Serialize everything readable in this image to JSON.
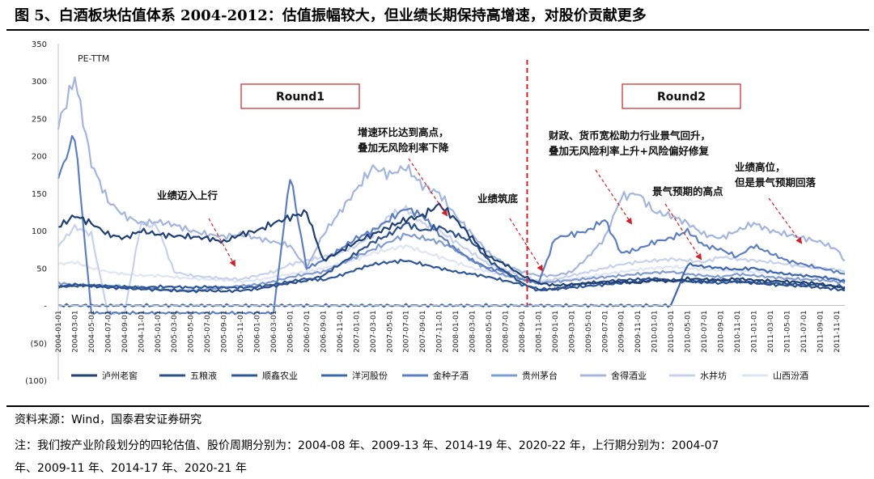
{
  "figure": {
    "title": "图 5、白酒板块估值体系 2004-2012：估值振幅较大，但业绩长期保持高增速，对股价贡献更多",
    "source": "资料来源：Wind，国泰君安证券研究",
    "note_line1": "注：我们按产业阶段划分的四轮估值、股价周期分别为：2004-08 年、2009-13 年、2014-19 年、2020-22 年，上行期分别为：2004-07",
    "note_line2": "年、2009-11 年、2014-17 年、2020-21 年"
  },
  "chart_data": {
    "type": "line",
    "title": "",
    "ylabel": "PE-TTM",
    "xlabel": "",
    "ylim": [
      -100,
      350
    ],
    "yticks": [
      -100,
      -50,
      0,
      50,
      100,
      150,
      200,
      250,
      300,
      350
    ],
    "ytick_labels": [
      "(100)",
      "(50)",
      "-",
      "50",
      "100",
      "150",
      "200",
      "250",
      "300",
      "350"
    ],
    "x_start": "2004-01",
    "x_end": "2011-12",
    "xticks": [
      "2004-01-01",
      "2004-03-01",
      "2004-05-01",
      "2004-07-01",
      "2004-09-01",
      "2004-11-01",
      "2005-01-01",
      "2005-03-01",
      "2005-05-01",
      "2005-07-01",
      "2005-09-01",
      "2005-11-01",
      "2006-01-01",
      "2006-03-01",
      "2006-05-01",
      "2006-07-01",
      "2006-09-01",
      "2006-11-01",
      "2007-01-01",
      "2007-03-01",
      "2007-05-01",
      "2007-07-01",
      "2007-09-01",
      "2007-11-01",
      "2008-01-01",
      "2008-03-01",
      "2008-05-01",
      "2008-07-01",
      "2008-09-01",
      "2008-11-01",
      "2009-01-01",
      "2009-03-01",
      "2009-05-01",
      "2009-07-01",
      "2009-09-01",
      "2009-11-01",
      "2010-01-01",
      "2010-03-01",
      "2010-05-01",
      "2010-07-01",
      "2010-09-01",
      "2010-11-01",
      "2011-01-01",
      "2011-03-01",
      "2011-05-01",
      "2011-07-01",
      "2011-09-01",
      "2011-11-01"
    ],
    "grid": false,
    "legend_position": "bottom",
    "series": [
      {
        "name": "泸州老窖",
        "color": "#1f3e73",
        "x": [
          "2004-01",
          "2004-03",
          "2004-05",
          "2004-07",
          "2004-09",
          "2004-11",
          "2005-01",
          "2005-03",
          "2005-05",
          "2005-07",
          "2005-09",
          "2005-11",
          "2006-01",
          "2006-03",
          "2006-05",
          "2006-07",
          "2006-09",
          "2006-11",
          "2007-01",
          "2007-03",
          "2007-05",
          "2007-07",
          "2007-09",
          "2007-11",
          "2008-01",
          "2008-03",
          "2008-05",
          "2008-07",
          "2008-09",
          "2008-11",
          "2009-01",
          "2009-03",
          "2009-05",
          "2009-07",
          "2009-09",
          "2009-11",
          "2010-01",
          "2010-03",
          "2010-05",
          "2010-07",
          "2010-09",
          "2010-11",
          "2011-01",
          "2011-03",
          "2011-05",
          "2011-07",
          "2011-09",
          "2011-11",
          "2011-12"
        ],
        "y": [
          105,
          120,
          110,
          95,
          90,
          100,
          95,
          93,
          92,
          90,
          85,
          95,
          100,
          110,
          118,
          125,
          60,
          72,
          85,
          95,
          105,
          115,
          120,
          135,
          115,
          90,
          65,
          55,
          40,
          30,
          27,
          28,
          30,
          30,
          32,
          30,
          34,
          32,
          36,
          35,
          34,
          36,
          34,
          33,
          32,
          31,
          29,
          25,
          23
        ]
      },
      {
        "name": "五粮液",
        "color": "#2b4f8a",
        "x": [
          "2004-01",
          "2004-03",
          "2004-05",
          "2004-07",
          "2004-09",
          "2004-11",
          "2005-01",
          "2005-03",
          "2005-05",
          "2005-07",
          "2005-09",
          "2005-11",
          "2006-01",
          "2006-03",
          "2006-05",
          "2006-07",
          "2006-09",
          "2006-11",
          "2007-01",
          "2007-03",
          "2007-05",
          "2007-07",
          "2007-09",
          "2007-11",
          "2008-01",
          "2008-03",
          "2008-05",
          "2008-07",
          "2008-09",
          "2008-11",
          "2009-01",
          "2009-03",
          "2009-05",
          "2009-07",
          "2009-09",
          "2009-11",
          "2010-01",
          "2010-03",
          "2010-05",
          "2010-07",
          "2010-09",
          "2010-11",
          "2011-01",
          "2011-03",
          "2011-05",
          "2011-07",
          "2011-09",
          "2011-11",
          "2011-12"
        ],
        "y": [
          25,
          28,
          26,
          24,
          23,
          22,
          21,
          20,
          19,
          20,
          19,
          20,
          22,
          26,
          30,
          33,
          40,
          55,
          70,
          85,
          95,
          110,
          100,
          105,
          95,
          85,
          60,
          45,
          30,
          20,
          22,
          27,
          30,
          32,
          34,
          35,
          36,
          34,
          33,
          32,
          34,
          32,
          30,
          28,
          27,
          26,
          24,
          22,
          20
        ]
      },
      {
        "name": "顺鑫农业",
        "color": "#2e5597",
        "x": [
          "2004-01",
          "2004-03",
          "2004-05",
          "2004-07",
          "2004-09",
          "2004-11",
          "2005-01",
          "2005-03",
          "2005-05",
          "2005-07",
          "2005-09",
          "2005-11",
          "2006-01",
          "2006-03",
          "2006-05",
          "2006-07",
          "2006-09",
          "2006-11",
          "2007-01",
          "2007-03",
          "2007-05",
          "2007-07",
          "2007-09",
          "2007-11",
          "2008-01",
          "2008-03",
          "2008-05",
          "2008-07",
          "2008-09",
          "2008-11",
          "2009-01",
          "2009-03",
          "2009-05",
          "2009-07",
          "2009-09",
          "2009-11",
          "2010-01",
          "2010-03",
          "2010-05",
          "2010-07",
          "2010-09",
          "2010-11",
          "2011-01",
          "2011-03",
          "2011-05",
          "2011-07",
          "2011-09",
          "2011-11",
          "2011-12"
        ],
        "y": [
          25,
          26,
          27,
          26,
          25,
          24,
          25,
          25,
          24,
          25,
          24,
          24,
          25,
          28,
          32,
          36,
          34,
          40,
          48,
          55,
          58,
          60,
          55,
          50,
          45,
          42,
          38,
          33,
          28,
          22,
          22,
          24,
          26,
          28,
          30,
          32,
          34,
          33,
          32,
          31,
          30,
          32,
          31,
          30,
          29,
          28,
          27,
          26,
          25
        ]
      },
      {
        "name": "洋河股份",
        "color": "#3d67ad",
        "x": [
          "2004-01",
          "2004-03",
          "2004-05",
          "2004-07",
          "2004-09",
          "2004-11",
          "2005-01",
          "2005-03",
          "2005-05",
          "2005-07",
          "2005-09",
          "2005-11",
          "2006-01",
          "2006-03",
          "2006-05",
          "2006-07",
          "2006-09",
          "2006-11",
          "2007-01",
          "2007-03",
          "2007-05",
          "2007-07",
          "2007-09",
          "2007-11",
          "2008-01",
          "2008-03",
          "2008-05",
          "2008-07",
          "2008-09",
          "2008-11",
          "2009-01",
          "2009-03",
          "2009-05",
          "2009-07",
          "2009-09",
          "2009-11",
          "2010-01",
          "2010-03",
          "2010-05",
          "2010-07",
          "2010-09",
          "2010-11",
          "2011-01",
          "2011-03",
          "2011-05",
          "2011-07",
          "2011-09",
          "2011-11",
          "2011-12"
        ],
        "y": [
          0,
          0,
          0,
          0,
          0,
          0,
          0,
          0,
          0,
          0,
          0,
          0,
          0,
          0,
          0,
          0,
          0,
          0,
          0,
          0,
          0,
          0,
          0,
          0,
          0,
          0,
          0,
          0,
          0,
          0,
          0,
          0,
          0,
          0,
          0,
          0,
          0,
          0,
          55,
          52,
          50,
          48,
          50,
          45,
          42,
          40,
          38,
          35,
          32
        ]
      },
      {
        "name": "金种子酒",
        "color": "#5d7ec1",
        "x": [
          "2004-01",
          "2004-03",
          "2004-05",
          "2004-07",
          "2004-09",
          "2004-11",
          "2005-01",
          "2005-03",
          "2005-05",
          "2005-07",
          "2005-09",
          "2005-11",
          "2006-01",
          "2006-03",
          "2006-05",
          "2006-07",
          "2006-09",
          "2006-11",
          "2007-01",
          "2007-03",
          "2007-05",
          "2007-07",
          "2007-09",
          "2007-11",
          "2008-01",
          "2008-03",
          "2008-05",
          "2008-07",
          "2008-09",
          "2008-11",
          "2009-01",
          "2009-03",
          "2009-05",
          "2009-07",
          "2009-09",
          "2009-11",
          "2010-01",
          "2010-03",
          "2010-05",
          "2010-07",
          "2010-09",
          "2010-11",
          "2011-01",
          "2011-03",
          "2011-05",
          "2011-07",
          "2011-09",
          "2011-11",
          "2011-12"
        ],
        "y": [
          170,
          230,
          -10,
          -10,
          -10,
          -10,
          -10,
          -10,
          -10,
          -10,
          -10,
          -10,
          -10,
          -10,
          175,
          50,
          60,
          75,
          90,
          100,
          115,
          130,
          120,
          95,
          75,
          60,
          50,
          45,
          35,
          30,
          90,
          95,
          100,
          115,
          70,
          75,
          85,
          90,
          100,
          80,
          75,
          65,
          80,
          70,
          60,
          55,
          50,
          45,
          42
        ]
      },
      {
        "name": "贵州茅台",
        "color": "#7f9bd0",
        "x": [
          "2004-01",
          "2004-03",
          "2004-05",
          "2004-07",
          "2004-09",
          "2004-11",
          "2005-01",
          "2005-03",
          "2005-05",
          "2005-07",
          "2005-09",
          "2005-11",
          "2006-01",
          "2006-03",
          "2006-05",
          "2006-07",
          "2006-09",
          "2006-11",
          "2007-01",
          "2007-03",
          "2007-05",
          "2007-07",
          "2007-09",
          "2007-11",
          "2008-01",
          "2008-03",
          "2008-05",
          "2008-07",
          "2008-09",
          "2008-11",
          "2009-01",
          "2009-03",
          "2009-05",
          "2009-07",
          "2009-09",
          "2009-11",
          "2010-01",
          "2010-03",
          "2010-05",
          "2010-07",
          "2010-09",
          "2010-11",
          "2011-01",
          "2011-03",
          "2011-05",
          "2011-07",
          "2011-09",
          "2011-11",
          "2011-12"
        ],
        "y": [
          30,
          28,
          27,
          26,
          25,
          24,
          22,
          21,
          20,
          22,
          24,
          26,
          28,
          32,
          38,
          42,
          45,
          55,
          65,
          75,
          85,
          95,
          90,
          85,
          75,
          60,
          48,
          40,
          35,
          30,
          32,
          34,
          36,
          38,
          40,
          42,
          44,
          45,
          42,
          40,
          38,
          42,
          40,
          38,
          36,
          35,
          34,
          32,
          30
        ]
      },
      {
        "name": "舍得酒业",
        "color": "#a3b5dd",
        "x": [
          "2004-01",
          "2004-03",
          "2004-05",
          "2004-07",
          "2004-09",
          "2004-11",
          "2005-01",
          "2005-03",
          "2005-05",
          "2005-07",
          "2005-09",
          "2005-11",
          "2006-01",
          "2006-03",
          "2006-05",
          "2006-07",
          "2006-09",
          "2006-11",
          "2007-01",
          "2007-03",
          "2007-05",
          "2007-07",
          "2007-09",
          "2007-11",
          "2008-01",
          "2008-03",
          "2008-05",
          "2008-07",
          "2008-09",
          "2008-11",
          "2009-01",
          "2009-03",
          "2009-05",
          "2009-07",
          "2009-09",
          "2009-11",
          "2010-01",
          "2010-03",
          "2010-05",
          "2010-07",
          "2010-09",
          "2010-11",
          "2011-01",
          "2011-03",
          "2011-05",
          "2011-07",
          "2011-09",
          "2011-11",
          "2011-12"
        ],
        "y": [
          240,
          305,
          190,
          140,
          120,
          110,
          112,
          108,
          100,
          95,
          92,
          95,
          90,
          85,
          80,
          50,
          95,
          125,
          155,
          185,
          175,
          185,
          160,
          150,
          120,
          95,
          70,
          55,
          45,
          40,
          40,
          45,
          65,
          90,
          145,
          150,
          125,
          120,
          110,
          95,
          90,
          100,
          110,
          100,
          95,
          90,
          85,
          75,
          60
        ]
      },
      {
        "name": "水井坊",
        "color": "#c6d2ec",
        "x": [
          "2004-01",
          "2004-03",
          "2004-05",
          "2004-07",
          "2004-09",
          "2004-11",
          "2005-01",
          "2005-03",
          "2005-05",
          "2005-07",
          "2005-09",
          "2005-11",
          "2006-01",
          "2006-03",
          "2006-05",
          "2006-07",
          "2006-09",
          "2006-11",
          "2007-01",
          "2007-03",
          "2007-05",
          "2007-07",
          "2007-09",
          "2007-11",
          "2008-01",
          "2008-03",
          "2008-05",
          "2008-07",
          "2008-09",
          "2008-11",
          "2009-01",
          "2009-03",
          "2009-05",
          "2009-07",
          "2009-09",
          "2009-11",
          "2010-01",
          "2010-03",
          "2010-05",
          "2010-07",
          "2010-09",
          "2010-11",
          "2011-01",
          "2011-03",
          "2011-05",
          "2011-07",
          "2011-09",
          "2011-11",
          "2011-12"
        ],
        "y": [
          80,
          105,
          95,
          -10,
          -10,
          110,
          105,
          45,
          40,
          38,
          36,
          35,
          40,
          45,
          55,
          60,
          65,
          70,
          80,
          95,
          120,
          130,
          110,
          100,
          85,
          70,
          55,
          48,
          40,
          32,
          35,
          40,
          45,
          50,
          55,
          58,
          60,
          62,
          60,
          58,
          65,
          62,
          60,
          58,
          55,
          52,
          50,
          48,
          45
        ]
      },
      {
        "name": "山西汾酒",
        "color": "#dfe5f4",
        "x": [
          "2004-01",
          "2004-03",
          "2004-05",
          "2004-07",
          "2004-09",
          "2004-11",
          "2005-01",
          "2005-03",
          "2005-05",
          "2005-07",
          "2005-09",
          "2005-11",
          "2006-01",
          "2006-03",
          "2006-05",
          "2006-07",
          "2006-09",
          "2006-11",
          "2007-01",
          "2007-03",
          "2007-05",
          "2007-07",
          "2007-09",
          "2007-11",
          "2008-01",
          "2008-03",
          "2008-05",
          "2008-07",
          "2008-09",
          "2008-11",
          "2009-01",
          "2009-03",
          "2009-05",
          "2009-07",
          "2009-09",
          "2009-11",
          "2010-01",
          "2010-03",
          "2010-05",
          "2010-07",
          "2010-09",
          "2010-11",
          "2011-01",
          "2011-03",
          "2011-05",
          "2011-07",
          "2011-09",
          "2011-11",
          "2011-12"
        ],
        "y": [
          55,
          58,
          50,
          45,
          42,
          40,
          40,
          38,
          36,
          35,
          34,
          32,
          34,
          38,
          42,
          45,
          50,
          55,
          62,
          70,
          75,
          80,
          72,
          65,
          58,
          50,
          45,
          40,
          35,
          30,
          32,
          35,
          38,
          42,
          45,
          48,
          50,
          52,
          50,
          48,
          47,
          46,
          45,
          44,
          42,
          40,
          38,
          36,
          35
        ]
      }
    ],
    "divider_x": "2008-11",
    "rounds": [
      {
        "label": "Round1"
      },
      {
        "label": "Round2"
      }
    ],
    "annotations": [
      {
        "line1": "业绩迈入上行",
        "line2": ""
      },
      {
        "line1": "增速环比达到高点，",
        "line2": "叠加无风险利率下降"
      },
      {
        "line1": "业绩筑底",
        "line2": ""
      },
      {
        "line1": "财政、货币宽松助力行业景气回升，",
        "line2": "叠加无风险利率上升+风险偏好修复"
      },
      {
        "line1": "景气预期的高点",
        "line2": ""
      },
      {
        "line1": "业绩高位，",
        "line2": "但是景气预期回落"
      }
    ]
  }
}
